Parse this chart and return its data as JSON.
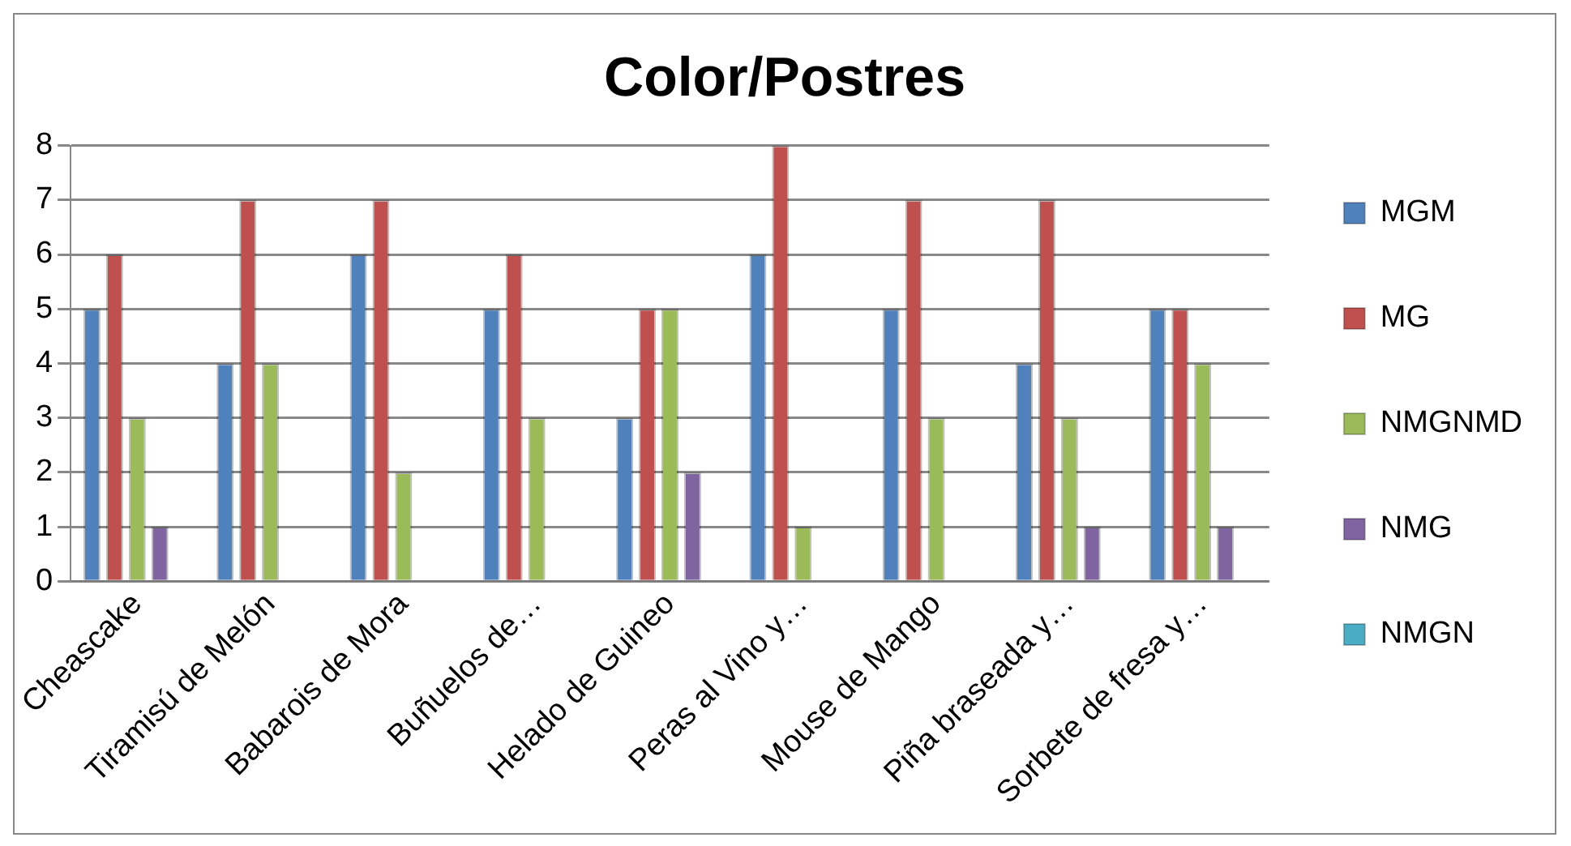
{
  "chart_data": {
    "type": "bar",
    "title": "Color/Postres",
    "categories": [
      "Cheascake",
      "Tiramisú de Melón",
      "Babarois de Mora",
      "Buñuelos de…",
      "Helado de Guineo",
      "Peras al Vino y…",
      "Mouse de Mango",
      "Piña braseada y…",
      "Sorbete de fresa y…"
    ],
    "series": [
      {
        "name": "MGM",
        "color": "#4f81bd",
        "values": [
          5,
          4,
          6,
          5,
          3,
          6,
          5,
          4,
          5
        ]
      },
      {
        "name": "MG",
        "color": "#c0504d",
        "values": [
          6,
          7,
          7,
          6,
          5,
          8,
          7,
          7,
          5
        ]
      },
      {
        "name": "NMGNMD",
        "color": "#9bbb59",
        "values": [
          3,
          4,
          2,
          3,
          5,
          1,
          3,
          3,
          4
        ]
      },
      {
        "name": "NMG",
        "color": "#8064a2",
        "values": [
          1,
          0,
          0,
          0,
          2,
          0,
          0,
          1,
          1
        ]
      },
      {
        "name": "NMGN",
        "color": "#4bacc6",
        "values": [
          0,
          0,
          0,
          0,
          0,
          0,
          0,
          0,
          0
        ]
      }
    ],
    "ylim": [
      0,
      8
    ],
    "yticks": [
      0,
      1,
      2,
      3,
      4,
      5,
      6,
      7,
      8
    ],
    "grid": "y",
    "legend": "right"
  }
}
